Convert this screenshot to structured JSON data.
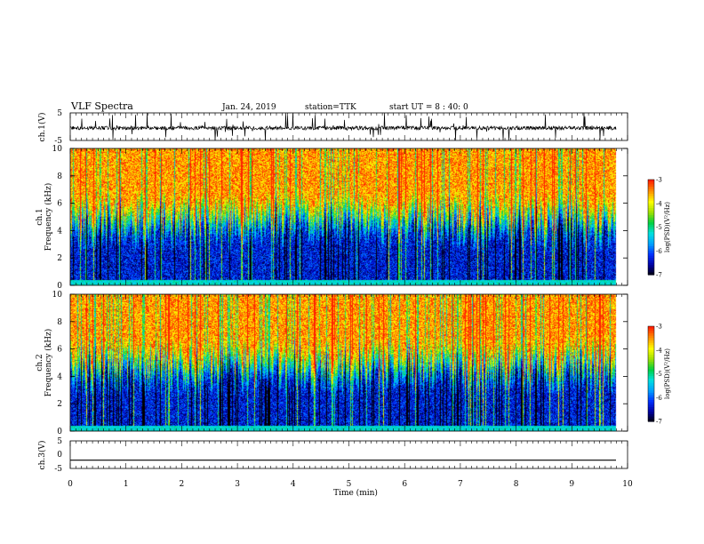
{
  "header": {
    "title": "VLF Spectra",
    "date": "Jan. 24, 2019",
    "station": "station=TTK",
    "start": "start UT =  8 : 40: 0"
  },
  "colors": {
    "scale": [
      "#000000",
      "#0000a0",
      "#0030ff",
      "#00a0ff",
      "#00e0e0",
      "#00d040",
      "#a0e000",
      "#ffff00",
      "#ff9000",
      "#ff2000",
      "#ffffff"
    ]
  },
  "chart_data": [
    {
      "type": "line",
      "name": "ch1-waveform",
      "ylabel": "ch.1(V)",
      "ylim": [
        -5,
        5
      ],
      "y_tick_labels": [
        "5",
        "-5"
      ],
      "xlim": [
        0,
        10
      ],
      "trace_span_min": [
        0,
        9.8
      ],
      "baseline_v": -0.5,
      "typical_noise_v": [
        -1.5,
        1.0
      ],
      "spike_range_v": [
        -5,
        5
      ]
    },
    {
      "type": "heatmap",
      "name": "ch1-spectrogram",
      "ylabel": "ch.1\nFrequency  (kHz)",
      "ylim": [
        0,
        10
      ],
      "y_tick_labels": [
        "0",
        "2",
        "4",
        "6",
        "8",
        "10"
      ],
      "xlim": [
        0,
        10
      ],
      "data_span_min": [
        0,
        9.8
      ],
      "colorbar": {
        "label": "log(PSD)(V²/Hz)",
        "range": [
          -7,
          -3
        ],
        "tick_labels": [
          "-3",
          "-4",
          "-5",
          "-6",
          "-7"
        ]
      },
      "description_values": {
        "high_band_khz": [
          6,
          10
        ],
        "high_band_log_psd": -3.5,
        "low_band_khz": [
          0,
          4
        ],
        "low_band_log_psd": -6.3,
        "transition_khz": [
          3.5,
          6
        ]
      }
    },
    {
      "type": "heatmap",
      "name": "ch2-spectrogram",
      "ylabel": "ch.2\nFrequency  (kHz)",
      "ylim": [
        0,
        10
      ],
      "y_tick_labels": [
        "0",
        "2",
        "4",
        "6",
        "8",
        "10"
      ],
      "xlim": [
        0,
        10
      ],
      "data_span_min": [
        0,
        9.8
      ],
      "colorbar": {
        "label": "log(PSD)(V²/Hz)",
        "range": [
          -7,
          -3
        ],
        "tick_labels": [
          "-3",
          "-4",
          "-5",
          "-6",
          "-7"
        ]
      },
      "description_values": {
        "high_band_khz": [
          6,
          10
        ],
        "high_band_log_psd": -3.5,
        "low_band_khz": [
          0,
          4
        ],
        "low_band_log_psd": -6.3,
        "transition_khz": [
          3.5,
          6
        ]
      }
    },
    {
      "type": "line",
      "name": "ch3-waveform",
      "ylabel": "ch.3(V)",
      "ylim": [
        -5,
        5
      ],
      "y_tick_labels": [
        "5",
        "0",
        "-5"
      ],
      "xlim": [
        0,
        10
      ],
      "trace_span_min": [
        0,
        9.8
      ],
      "baseline_v": -2.0,
      "x_tick_labels": [
        "0",
        "1",
        "2",
        "3",
        "4",
        "5",
        "6",
        "7",
        "8",
        "9",
        "10"
      ],
      "xlabel": "Time  (min)"
    }
  ]
}
